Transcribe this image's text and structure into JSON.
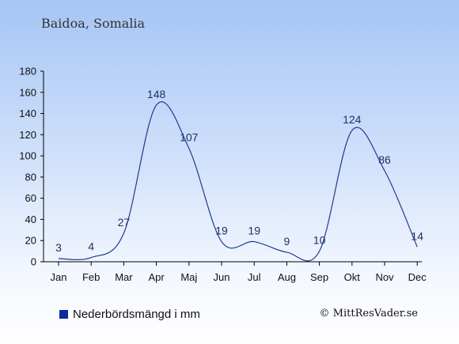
{
  "title": "Baidoa, Somalia",
  "legend": {
    "label": "Nederbördsmängd i mm",
    "color": "#0a2a9e"
  },
  "credit": "© MittResVader.se",
  "chart_data": {
    "type": "line",
    "title": "Baidoa, Somalia",
    "categories": [
      "Jan",
      "Feb",
      "Mar",
      "Apr",
      "Maj",
      "Jun",
      "Jul",
      "Aug",
      "Sep",
      "Okt",
      "Nov",
      "Dec"
    ],
    "series": [
      {
        "name": "Nederbördsmängd i mm",
        "values": [
          3,
          4,
          27,
          148,
          107,
          19,
          19,
          9,
          10,
          124,
          86,
          14
        ]
      }
    ],
    "ylim": [
      0,
      180
    ],
    "yticks": [
      0,
      20,
      40,
      60,
      80,
      100,
      120,
      140,
      160,
      180
    ],
    "line_color": "#1f3a8f",
    "grid": false,
    "legend_position": "bottom-left"
  }
}
